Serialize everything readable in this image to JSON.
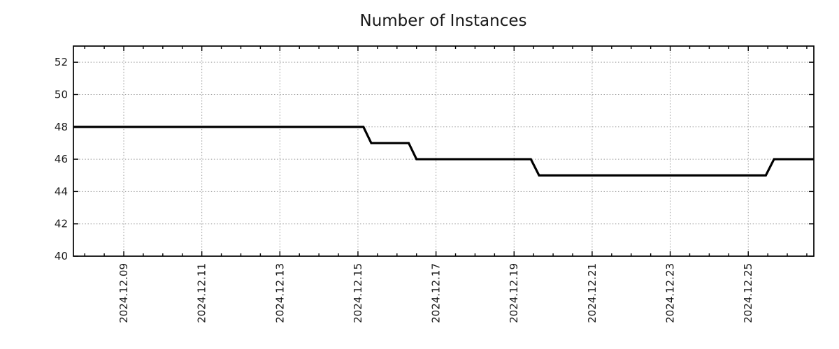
{
  "page": {
    "background": "#ffffff"
  },
  "chart_data": {
    "type": "line",
    "title": "Number of Instances",
    "legend": {
      "show": false
    },
    "grid": {
      "show": true,
      "style": "dotted",
      "color": "#9a9a9a"
    },
    "colors": {
      "line": "#000000",
      "frame": "#000000",
      "text": "#1a1a1a",
      "background": "#ffffff"
    },
    "x_axis": {
      "kind": "time",
      "unit": "day of December 2024",
      "range_days": [
        7.71,
        26.68
      ],
      "tick_days": [
        9,
        11,
        13,
        15,
        17,
        19,
        21,
        23,
        25
      ],
      "tick_labels": [
        "2024.12.09",
        "2024.12.11",
        "2024.12.13",
        "2024.12.15",
        "2024.12.17",
        "2024.12.19",
        "2024.12.21",
        "2024.12.23",
        "2024.12.25"
      ],
      "minor_tick_step_days": 0.5,
      "label_rotation_deg": 90
    },
    "y_axis": {
      "range": [
        40,
        53
      ],
      "ticks": [
        40,
        42,
        44,
        46,
        48,
        50,
        52
      ],
      "tick_labels": [
        "40",
        "42",
        "44",
        "46",
        "48",
        "50",
        "52"
      ]
    },
    "series": [
      {
        "name": "Number of Instances",
        "color": "#000000",
        "points": [
          [
            7.71,
            48
          ],
          [
            15.14,
            48
          ],
          [
            15.34,
            47
          ],
          [
            16.3,
            47
          ],
          [
            16.5,
            46
          ],
          [
            19.43,
            46
          ],
          [
            19.64,
            45
          ],
          [
            25.45,
            45
          ],
          [
            25.66,
            46
          ],
          [
            26.68,
            46
          ]
        ]
      }
    ]
  }
}
